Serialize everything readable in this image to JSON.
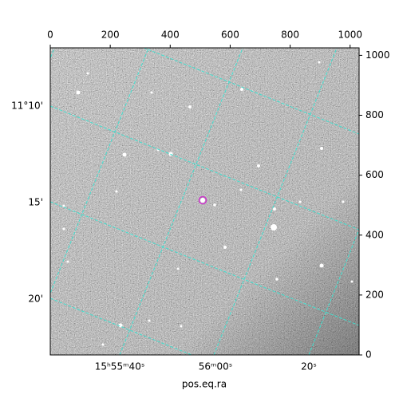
{
  "chart_data": {
    "type": "image",
    "xlabel": "pos.eq.ra",
    "xlim": [
      0,
      1030
    ],
    "xticks": [
      0,
      200,
      400,
      600,
      800,
      1000
    ],
    "ylim": [
      0,
      1025
    ],
    "yticks": [
      0,
      200,
      400,
      600,
      800,
      1000
    ],
    "ra_tick_labels": [
      "15ʰ55ᵐ40ˢ",
      "56ᵐ00ˢ",
      "20ˢ"
    ],
    "dec_tick_labels": [
      "11°10'",
      "15'",
      "20'"
    ],
    "grid_color": "#40e0d0",
    "marker_color": "#cc33cc"
  }
}
